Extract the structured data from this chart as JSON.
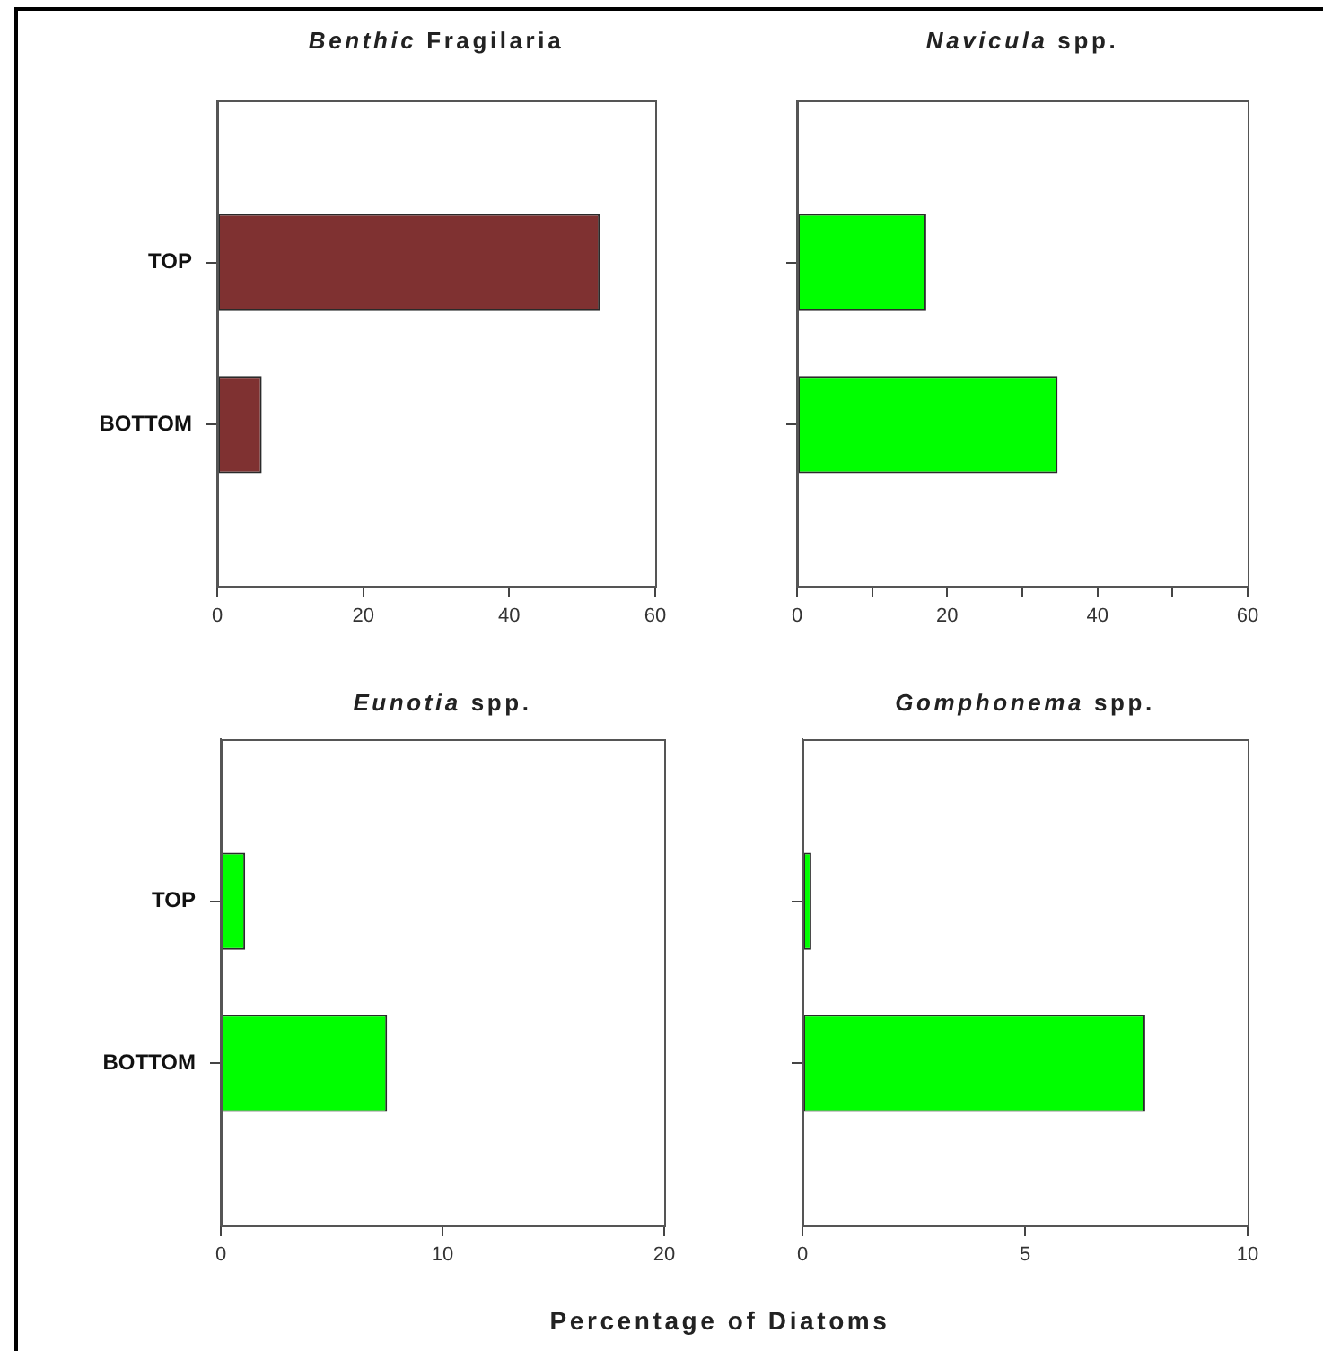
{
  "chart_data": [
    {
      "type": "bar",
      "orientation": "horizontal",
      "title": "Benthic Fragilaria",
      "categories": [
        "TOP",
        "BOTTOM"
      ],
      "values": [
        52.4,
        6.1
      ],
      "color": "#7f3131",
      "xlim": [
        0,
        60
      ],
      "xticks": [
        0,
        20,
        40,
        60
      ]
    },
    {
      "type": "bar",
      "orientation": "horizontal",
      "title": "Navicula spp.",
      "categories": [
        null,
        null
      ],
      "values": [
        17.2,
        34.7
      ],
      "color": "#00ff00",
      "xlim": [
        0,
        60
      ],
      "xticks": [
        0,
        {
          "value": 10,
          "label": null
        },
        20,
        {
          "value": 30,
          "label": null
        },
        40,
        {
          "value": 50,
          "label": null
        },
        60
      ],
      "tick_labels": "x"
    },
    {
      "type": "bar",
      "orientation": "horizontal",
      "title": "Eunotia spp.",
      "categories": [
        "TOP",
        "BOTTOM"
      ],
      "values": [
        1.1,
        7.5
      ],
      "color": "#00ff00",
      "xlim": [
        0,
        20
      ],
      "xticks": [
        0,
        10,
        20
      ]
    },
    {
      "type": "bar",
      "orientation": "horizontal",
      "title": "Gomphonema spp.",
      "categories": [
        null,
        null
      ],
      "values": [
        0.2,
        7.7
      ],
      "color": "#00ff00",
      "xlim": [
        0,
        10
      ],
      "xticks": [
        0,
        5,
        10
      ],
      "tick_labels": "x",
      "xlabel": "Percentage of Diatoms"
    }
  ]
}
